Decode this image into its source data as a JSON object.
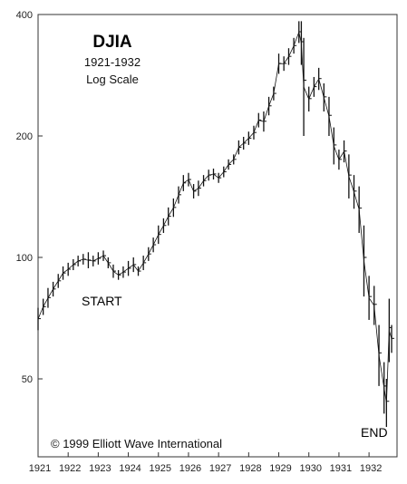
{
  "chart_data": {
    "type": "bar",
    "title": "DJIA",
    "subtitle_lines": [
      "1921-1932",
      "Log Scale"
    ],
    "xlabel": "",
    "ylabel": "",
    "y_scale": "log",
    "ylim": [
      25,
      400
    ],
    "y_ticks": [
      "50",
      "100",
      "200",
      "400"
    ],
    "x_ticks": [
      "1921",
      "1922",
      "1923",
      "1924",
      "1925",
      "1926",
      "1927",
      "1928",
      "1929",
      "1930",
      "1931",
      "1932"
    ],
    "xlim": [
      1921.0,
      1932.75
    ],
    "grid": false,
    "annotations": {
      "start": "START",
      "end": "END"
    },
    "copyright": "© 1999 Elliott Wave International",
    "series": [
      {
        "values": [
          [
            1921.0,
            66,
            75
          ],
          [
            1921.17,
            72,
            79
          ],
          [
            1921.33,
            75,
            84
          ],
          [
            1921.5,
            80,
            87
          ],
          [
            1921.67,
            84,
            91
          ],
          [
            1921.83,
            88,
            95
          ],
          [
            1922.0,
            90,
            97
          ],
          [
            1922.17,
            93,
            99
          ],
          [
            1922.33,
            95,
            101
          ],
          [
            1922.5,
            96,
            102
          ],
          [
            1922.67,
            94,
            103
          ],
          [
            1922.83,
            95,
            101
          ],
          [
            1923.0,
            96,
            103
          ],
          [
            1923.17,
            98,
            104
          ],
          [
            1923.33,
            94,
            100
          ],
          [
            1923.5,
            89,
            96
          ],
          [
            1923.67,
            88,
            93
          ],
          [
            1923.83,
            89,
            95
          ],
          [
            1924.0,
            90,
            98
          ],
          [
            1924.17,
            92,
            100
          ],
          [
            1924.33,
            90,
            95
          ],
          [
            1924.5,
            93,
            101
          ],
          [
            1924.67,
            98,
            106
          ],
          [
            1924.83,
            103,
            112
          ],
          [
            1925.0,
            108,
            120
          ],
          [
            1925.17,
            115,
            125
          ],
          [
            1925.33,
            120,
            133
          ],
          [
            1925.5,
            126,
            140
          ],
          [
            1925.67,
            136,
            150
          ],
          [
            1925.83,
            146,
            160
          ],
          [
            1926.0,
            150,
            162
          ],
          [
            1926.17,
            140,
            152
          ],
          [
            1926.33,
            142,
            155
          ],
          [
            1926.5,
            150,
            160
          ],
          [
            1926.67,
            155,
            165
          ],
          [
            1926.83,
            156,
            166
          ],
          [
            1927.0,
            153,
            162
          ],
          [
            1927.17,
            158,
            168
          ],
          [
            1927.33,
            165,
            175
          ],
          [
            1927.5,
            170,
            180
          ],
          [
            1927.67,
            180,
            195
          ],
          [
            1927.83,
            185,
            199
          ],
          [
            1928.0,
            190,
            205
          ],
          [
            1928.17,
            196,
            212
          ],
          [
            1928.33,
            210,
            228
          ],
          [
            1928.5,
            205,
            230
          ],
          [
            1928.67,
            225,
            250
          ],
          [
            1928.83,
            245,
            265
          ],
          [
            1929.0,
            285,
            320
          ],
          [
            1929.17,
            290,
            315
          ],
          [
            1929.33,
            300,
            330
          ],
          [
            1929.5,
            320,
            350
          ],
          [
            1929.67,
            340,
            385
          ],
          [
            1929.75,
            300,
            385
          ],
          [
            1929.83,
            200,
            350
          ],
          [
            1930.0,
            230,
            265
          ],
          [
            1930.17,
            250,
            280
          ],
          [
            1930.33,
            260,
            295
          ],
          [
            1930.5,
            230,
            270
          ],
          [
            1930.67,
            200,
            250
          ],
          [
            1930.83,
            170,
            210
          ],
          [
            1931.0,
            165,
            185
          ],
          [
            1931.17,
            172,
            195
          ],
          [
            1931.33,
            140,
            180
          ],
          [
            1931.5,
            132,
            160
          ],
          [
            1931.67,
            115,
            150
          ],
          [
            1931.83,
            80,
            120
          ],
          [
            1932.0,
            70,
            90
          ],
          [
            1932.17,
            68,
            85
          ],
          [
            1932.33,
            48,
            68
          ],
          [
            1932.5,
            41,
            55
          ],
          [
            1932.58,
            38,
            50
          ],
          [
            1932.67,
            55,
            79
          ],
          [
            1932.75,
            58,
            68
          ]
        ]
      }
    ]
  }
}
